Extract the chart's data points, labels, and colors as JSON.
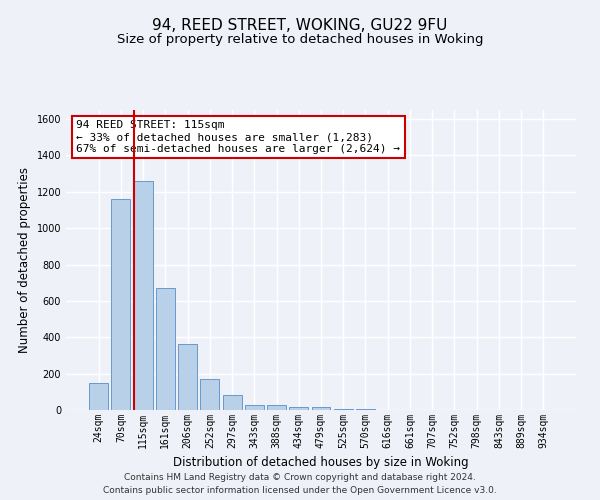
{
  "title": "94, REED STREET, WOKING, GU22 9FU",
  "subtitle": "Size of property relative to detached houses in Woking",
  "xlabel": "Distribution of detached houses by size in Woking",
  "ylabel": "Number of detached properties",
  "categories": [
    "24sqm",
    "70sqm",
    "115sqm",
    "161sqm",
    "206sqm",
    "252sqm",
    "297sqm",
    "343sqm",
    "388sqm",
    "434sqm",
    "479sqm",
    "525sqm",
    "570sqm",
    "616sqm",
    "661sqm",
    "707sqm",
    "752sqm",
    "798sqm",
    "843sqm",
    "889sqm",
    "934sqm"
  ],
  "values": [
    150,
    1160,
    1260,
    670,
    365,
    170,
    85,
    30,
    25,
    15,
    15,
    5,
    5,
    0,
    0,
    0,
    0,
    0,
    0,
    0,
    0
  ],
  "bar_color": "#b8d0e8",
  "bar_edge_color": "#6699cc",
  "red_line_x": 2,
  "annotation_text": "94 REED STREET: 115sqm\n← 33% of detached houses are smaller (1,283)\n67% of semi-detached houses are larger (2,624) →",
  "annotation_box_facecolor": "#ffffff",
  "annotation_box_edgecolor": "#cc0000",
  "ylim": [
    0,
    1650
  ],
  "yticks": [
    0,
    200,
    400,
    600,
    800,
    1000,
    1200,
    1400,
    1600
  ],
  "footer_line1": "Contains HM Land Registry data © Crown copyright and database right 2024.",
  "footer_line2": "Contains public sector information licensed under the Open Government Licence v3.0.",
  "bg_color": "#eef2f8",
  "grid_color": "#ffffff",
  "title_fontsize": 11,
  "subtitle_fontsize": 9.5,
  "axis_label_fontsize": 8.5,
  "tick_fontsize": 7,
  "annotation_fontsize": 8,
  "footer_fontsize": 6.5
}
